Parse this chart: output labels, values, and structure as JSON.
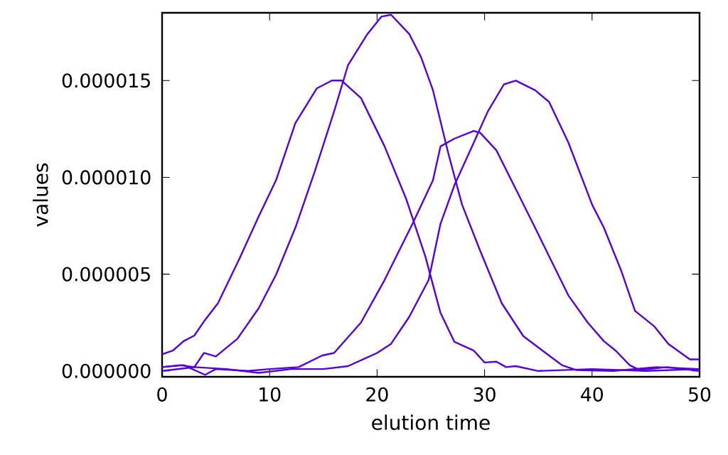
{
  "chart_data": {
    "type": "line",
    "xlabel": "elution time",
    "ylabel": "values",
    "xlim": [
      0,
      50
    ],
    "ylim": [
      -3e-07,
      1.85e-05
    ],
    "xticks": [
      0,
      10,
      20,
      30,
      40,
      50
    ],
    "yticks": [
      {
        "value": 0,
        "label": "0.000000"
      },
      {
        "value": 5e-06,
        "label": "0.000005"
      },
      {
        "value": 1e-05,
        "label": "0.000010"
      },
      {
        "value": 1.5e-05,
        "label": "0.000015"
      }
    ],
    "grid": false,
    "marker": "none",
    "line_style": "solid",
    "series": [
      {
        "color": "#5500dd",
        "x": [
          0,
          1,
          2,
          3,
          4,
          5.2,
          7.2,
          9,
          10.6,
          12.4,
          14.4,
          15.8,
          16.7,
          18.5,
          20.7,
          22.7,
          24.5,
          25.9,
          27.2,
          29,
          30,
          31.1,
          32,
          32.9,
          35,
          40,
          45,
          50
        ],
        "values": [
          8.6e-07,
          1.05e-06,
          1.54e-06,
          1.83e-06,
          2.64e-06,
          3.5e-06,
          5.8e-06,
          8e-06,
          9.85e-06,
          1.28e-05,
          1.46e-05,
          1.5e-05,
          1.5e-05,
          1.41e-05,
          1.16e-05,
          8.9e-06,
          5.9e-06,
          3e-06,
          1.5e-06,
          1.05e-06,
          4.4e-07,
          4.8e-07,
          2e-07,
          2.5e-07,
          0,
          1e-07,
          0,
          1e-07
        ]
      },
      {
        "color": "#5500dd",
        "x": [
          0,
          1.7,
          3,
          3.9,
          5,
          7,
          9,
          10.6,
          12.4,
          14.2,
          16,
          17.3,
          19.1,
          20.4,
          21.3,
          23,
          24.1,
          25.2,
          26.6,
          27.9,
          29.6,
          31.6,
          33.6,
          35.4,
          37.2,
          38.5,
          42,
          46,
          50
        ],
        "values": [
          2e-07,
          3e-07,
          2e-07,
          9.3e-07,
          7.5e-07,
          1.66e-06,
          3.25e-06,
          4.97e-06,
          7.4e-06,
          1.03e-05,
          1.34e-05,
          1.58e-05,
          1.74e-05,
          1.83e-05,
          1.84e-05,
          1.74e-05,
          1.62e-05,
          1.45e-05,
          1.13e-05,
          8.6e-06,
          6.2e-06,
          3.5e-06,
          1.8e-06,
          1.05e-06,
          3e-07,
          5e-08,
          0,
          2e-07,
          1e-07
        ]
      },
      {
        "color": "#5500dd",
        "x": [
          0,
          2,
          4,
          5,
          8,
          10,
          12.7,
          14.9,
          16,
          18.5,
          20.7,
          23.3,
          25.2,
          25.9,
          27.2,
          29,
          29.6,
          31.1,
          32.9,
          34.7,
          36.2,
          37.8,
          39.6,
          41.1,
          42.2,
          43.5,
          44.4,
          47,
          50
        ],
        "values": [
          2e-07,
          3e-07,
          -2e-07,
          1e-07,
          0,
          1e-07,
          2e-07,
          8e-07,
          9.3e-07,
          2.5e-06,
          4.7e-06,
          7.6e-06,
          9.85e-06,
          1.16e-05,
          1.2e-05,
          1.24e-05,
          1.23e-05,
          1.14e-05,
          9.4e-06,
          7.4e-06,
          5.7e-06,
          3.9e-06,
          2.5e-06,
          1.54e-06,
          1.05e-06,
          3e-07,
          5e-08,
          2e-07,
          0
        ]
      },
      {
        "color": "#5500dd",
        "x": [
          0,
          3,
          6,
          9,
          12,
          15,
          17.3,
          20,
          21.3,
          23,
          24.8,
          25.9,
          27.2,
          29,
          30.3,
          31.8,
          32.9,
          34.7,
          36,
          37.8,
          40,
          41.1,
          42.7,
          44,
          45.8,
          47.1,
          49.1,
          50
        ],
        "values": [
          0,
          2e-07,
          1e-07,
          -1e-07,
          1e-07,
          1e-07,
          2.5e-07,
          9.3e-07,
          1.4e-06,
          2.8e-06,
          4.7e-06,
          7.6e-06,
          9.6e-06,
          1.18e-05,
          1.34e-05,
          1.48e-05,
          1.5e-05,
          1.45e-05,
          1.39e-05,
          1.18e-05,
          8.6e-06,
          7.4e-06,
          5.2e-06,
          3.1e-06,
          2.3e-06,
          1.4e-06,
          6e-07,
          6e-07
        ]
      }
    ]
  }
}
